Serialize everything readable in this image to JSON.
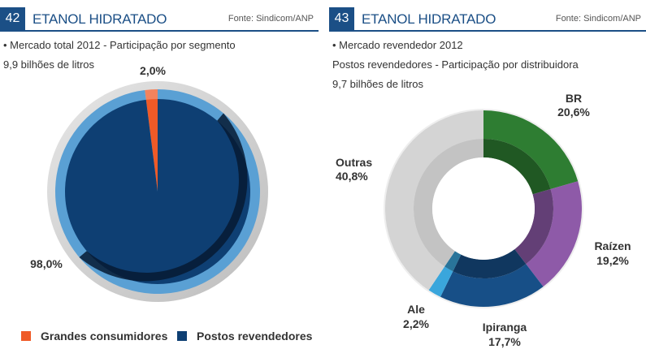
{
  "left": {
    "number": "42",
    "title": "ETANOL HIDRATADO",
    "source": "Fonte: Sindicom/ANP",
    "subtitle1": "• Mercado total 2012 - Participação por segmento",
    "subtitle2": "9,9 bilhões de litros"
  },
  "right": {
    "number": "43",
    "title": "ETANOL HIDRATADO",
    "source": "Fonte: Sindicom/ANP",
    "subtitle1": "• Mercado revendedor 2012",
    "subtitle2": "Postos revendedores - Participação por distribuidora",
    "subtitle3": "9,7 bilhões de litros"
  },
  "chart_data": [
    {
      "type": "pie",
      "categories": [
        "Grandes consumidores",
        "Postos revendedores"
      ],
      "values": [
        2.0,
        98.0
      ],
      "value_labels": [
        "2,0%",
        "98,0%"
      ],
      "colors": [
        "#ef5a27",
        "#0e3f73"
      ],
      "legend": [
        "Grandes consumidores",
        "Postos revendedores"
      ],
      "legend_position": "bottom"
    },
    {
      "type": "pie",
      "style": "donut",
      "categories": [
        "BR",
        "Raízen",
        "Ipiranga",
        "Ale",
        "Outras"
      ],
      "values": [
        20.6,
        19.2,
        17.7,
        2.2,
        40.8
      ],
      "value_labels": [
        "20,6%",
        "19,2%",
        "17,7%",
        "2,2%",
        "40,8%"
      ],
      "colors": [
        "#2e7d32",
        "#8e5aa8",
        "#174f87",
        "#3aa6dc",
        "#d4d4d4"
      ]
    }
  ]
}
